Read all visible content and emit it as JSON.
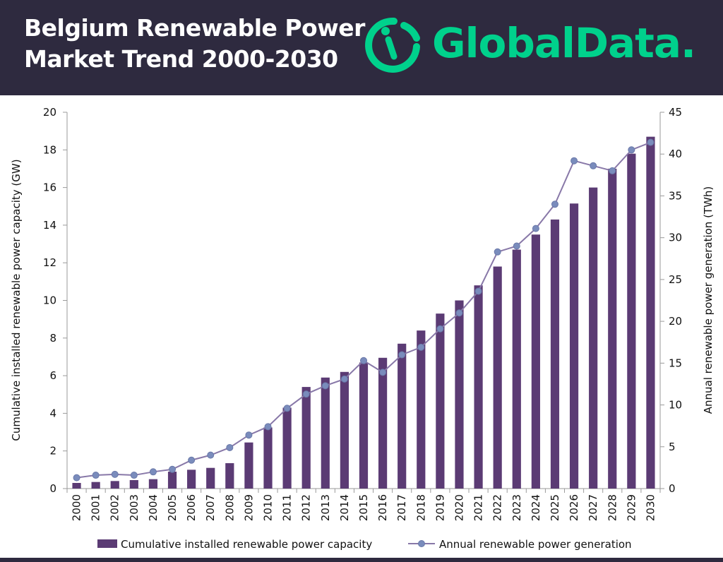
{
  "header": {
    "title_line1": "Belgium Renewable Power",
    "title_line2": "Market Trend 2000-2030",
    "logo_text": "GlobalData.",
    "logo_icon": "globaldata-logo-icon"
  },
  "colors": {
    "header_bg": "#2e2a3f",
    "bar": "#5b3b74",
    "line": "#8878a8",
    "marker": "#7a8cbc",
    "logo": "#00d18c"
  },
  "chart_data": {
    "type": "bar",
    "categories": [
      "2000",
      "2001",
      "2002",
      "2003",
      "2004",
      "2005",
      "2006",
      "2007",
      "2008",
      "2009",
      "2010",
      "2011",
      "2012",
      "2013",
      "2014",
      "2015",
      "2016",
      "2017",
      "2018",
      "2019",
      "2020",
      "2021",
      "2022",
      "2023",
      "2024",
      "2025",
      "2026",
      "2027",
      "2028",
      "2029",
      "2030"
    ],
    "series": [
      {
        "name": "Cumulative installed renewable power capacity",
        "type": "bar",
        "axis": "left",
        "values": [
          0.3,
          0.35,
          0.4,
          0.45,
          0.5,
          0.9,
          1.0,
          1.1,
          1.35,
          2.45,
          3.25,
          4.3,
          5.4,
          5.9,
          6.2,
          6.7,
          6.95,
          7.7,
          8.4,
          9.3,
          10.0,
          10.8,
          11.8,
          12.7,
          13.5,
          14.3,
          15.15,
          16.0,
          17.0,
          17.8,
          18.7
        ]
      },
      {
        "name": "Annual renewable power generation",
        "type": "line",
        "axis": "right",
        "values": [
          1.3,
          1.6,
          1.7,
          1.6,
          2.0,
          2.3,
          3.4,
          4.0,
          4.9,
          6.4,
          7.4,
          9.6,
          11.3,
          12.3,
          13.1,
          15.3,
          13.9,
          16.0,
          16.9,
          19.1,
          21.0,
          23.6,
          28.3,
          29.0,
          31.1,
          34.0,
          39.2,
          38.6,
          38.0,
          40.5,
          41.4
        ]
      }
    ],
    "ylabel_left": "Cumulative installed renewable power capacity (GW)",
    "ylabel_right": "Annual renewable power generation (TWh)",
    "ylim_left": [
      0,
      20
    ],
    "yticks_left": [
      0,
      2,
      4,
      6,
      8,
      10,
      12,
      14,
      16,
      18,
      20
    ],
    "ylim_right": [
      0,
      45
    ],
    "yticks_right": [
      0,
      5,
      10,
      15,
      20,
      25,
      30,
      35,
      40,
      45
    ],
    "grid": false,
    "legend_position": "bottom"
  }
}
